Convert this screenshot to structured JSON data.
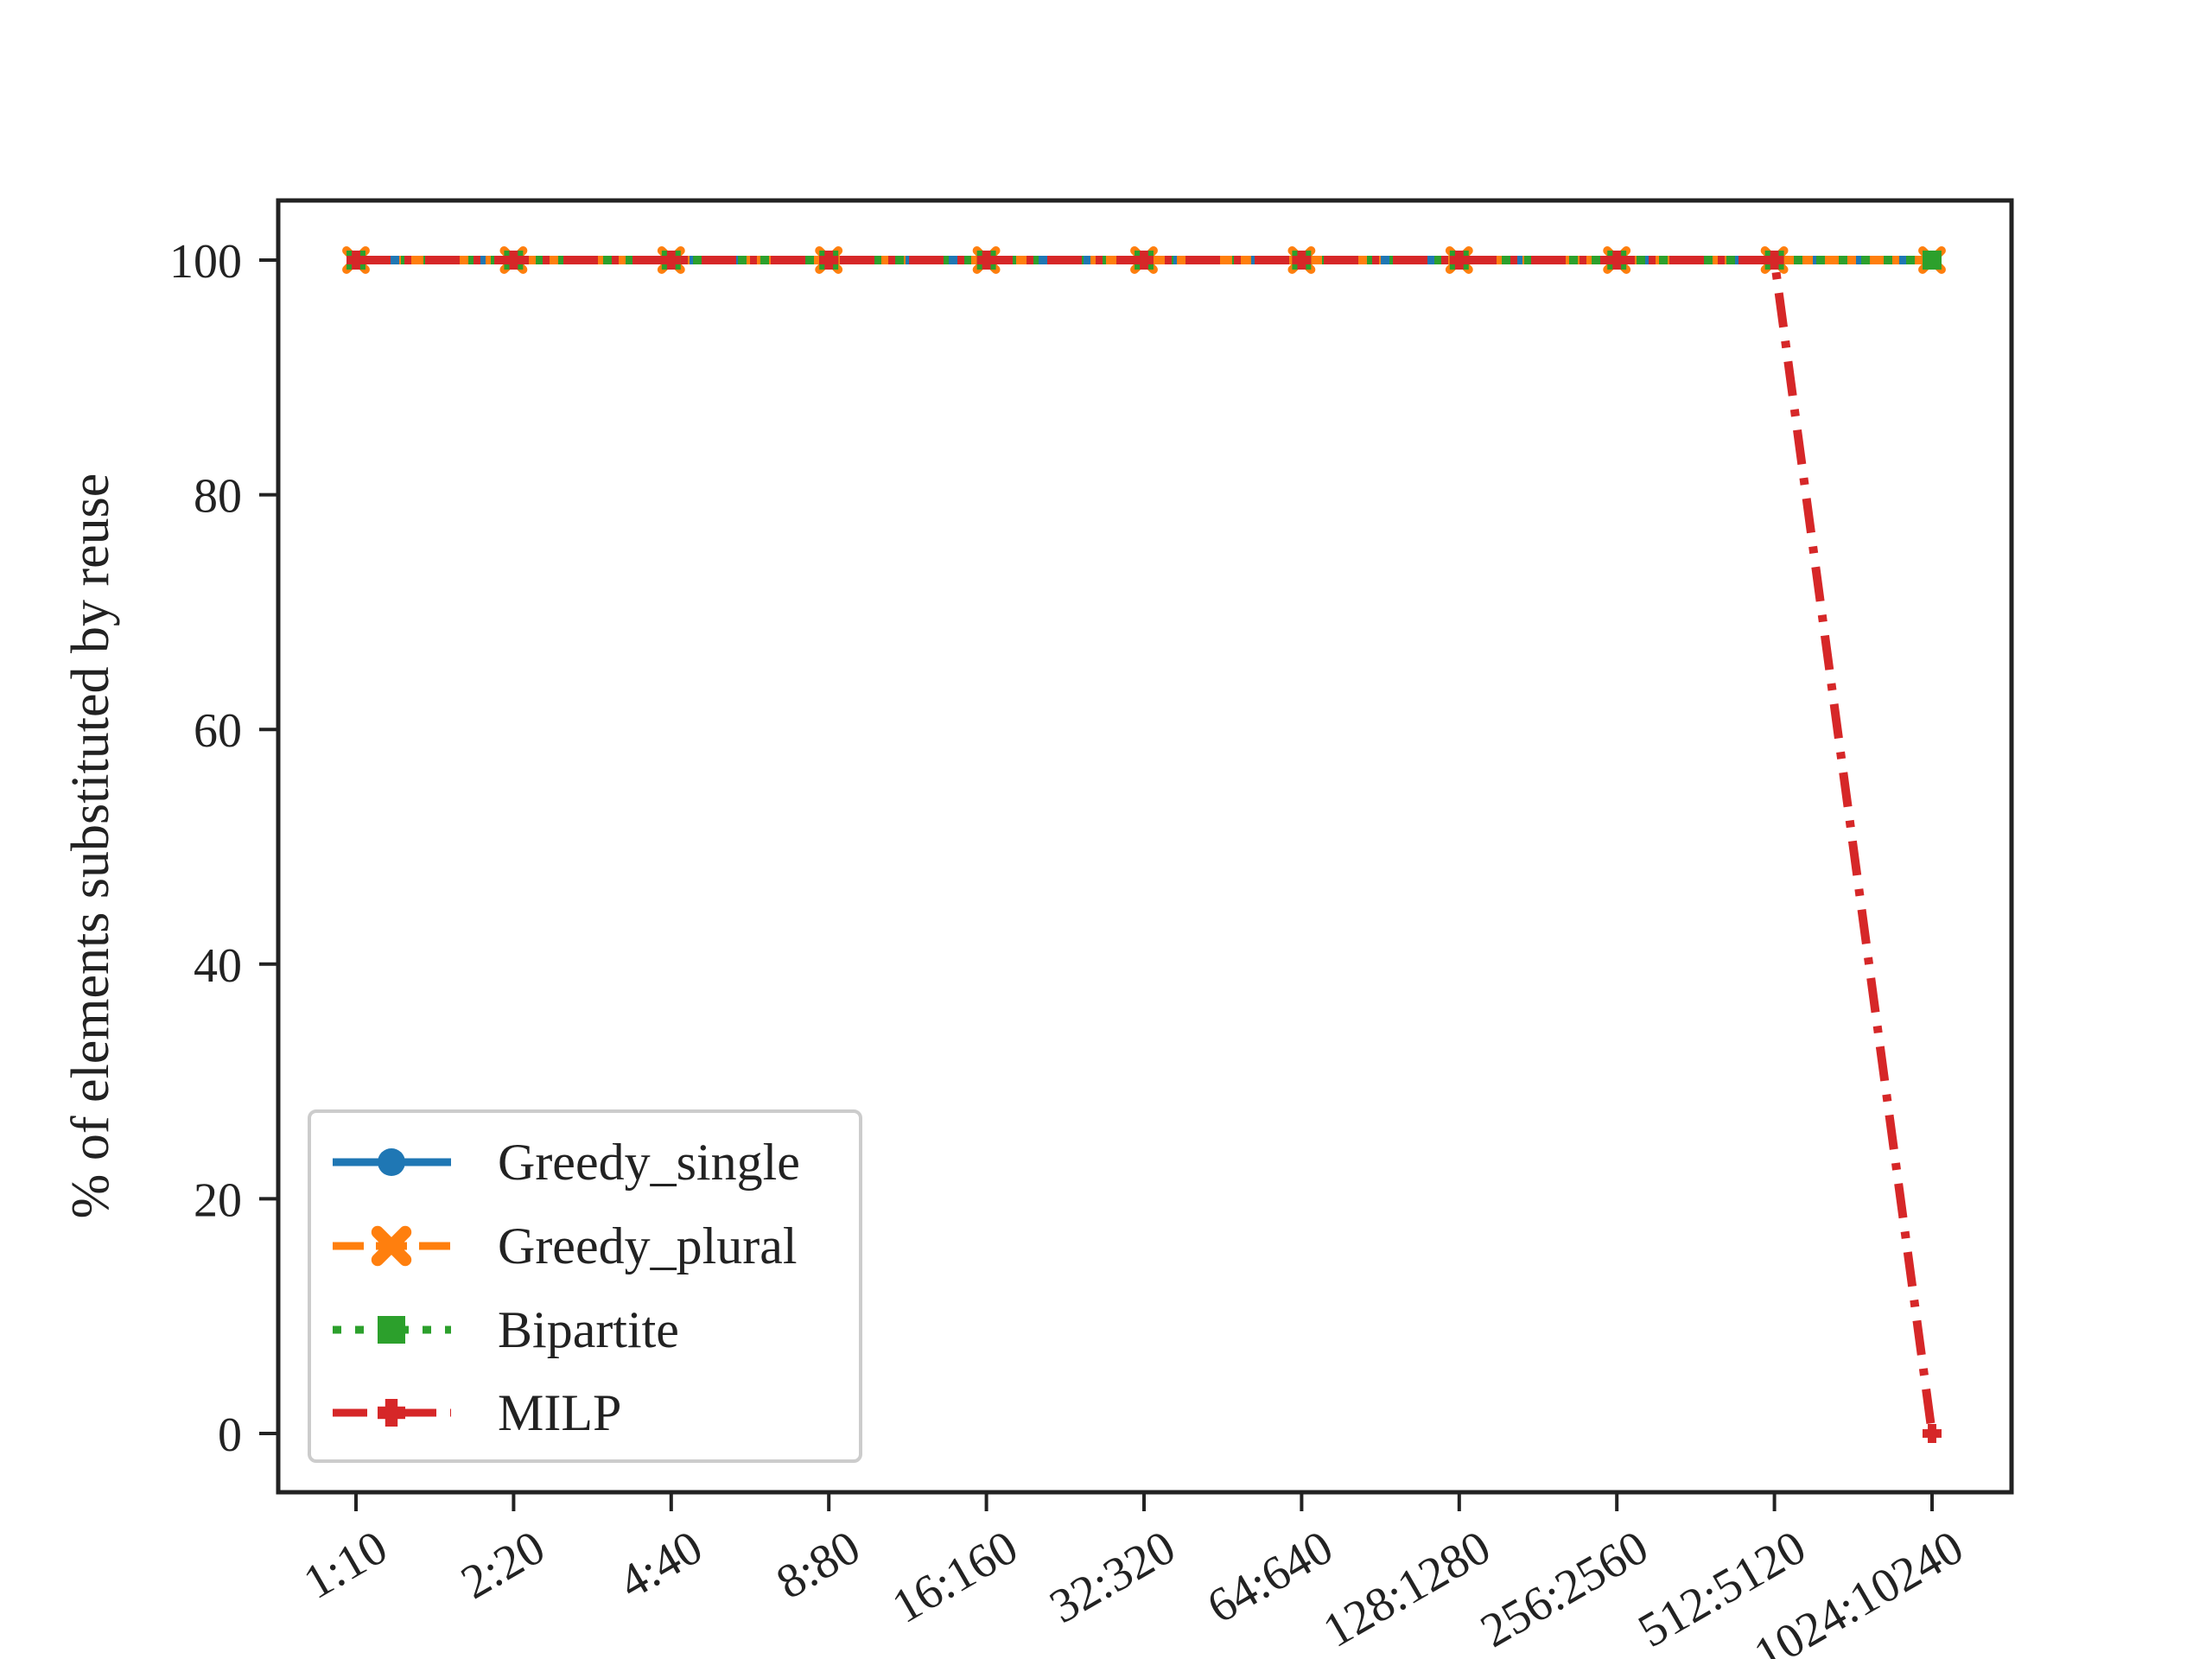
{
  "chart_data": {
    "type": "line",
    "title": "",
    "xlabel": "",
    "ylabel": "% of elements substituted by reuse",
    "categories": [
      "1:10",
      "2:20",
      "4:40",
      "8:80",
      "16:160",
      "32:320",
      "64:640",
      "128:1280",
      "256:2560",
      "512:5120",
      "1024:10240"
    ],
    "yticks": [
      0,
      20,
      40,
      60,
      80,
      100
    ],
    "ylim": [
      -5,
      105
    ],
    "grid": false,
    "legend_position": "bottom-left",
    "series": [
      {
        "name": "Greedy_single",
        "color": "#1f77b4",
        "linestyle": "solid",
        "marker": "circle",
        "values": [
          100,
          100,
          100,
          100,
          100,
          100,
          100,
          100,
          100,
          100,
          100
        ]
      },
      {
        "name": "Greedy_plural",
        "color": "#ff7f0e",
        "linestyle": "dashed",
        "marker": "x-filled",
        "values": [
          100,
          100,
          100,
          100,
          100,
          100,
          100,
          100,
          100,
          100,
          100
        ]
      },
      {
        "name": "Bipartite",
        "color": "#2ca02c",
        "linestyle": "dotted",
        "marker": "square",
        "values": [
          100,
          100,
          100,
          100,
          100,
          100,
          100,
          100,
          100,
          100,
          100
        ]
      },
      {
        "name": "MILP",
        "color": "#d62728",
        "linestyle": "dashdot",
        "marker": "plus-filled",
        "values": [
          100,
          100,
          100,
          100,
          100,
          100,
          100,
          100,
          100,
          100,
          0
        ]
      }
    ]
  }
}
